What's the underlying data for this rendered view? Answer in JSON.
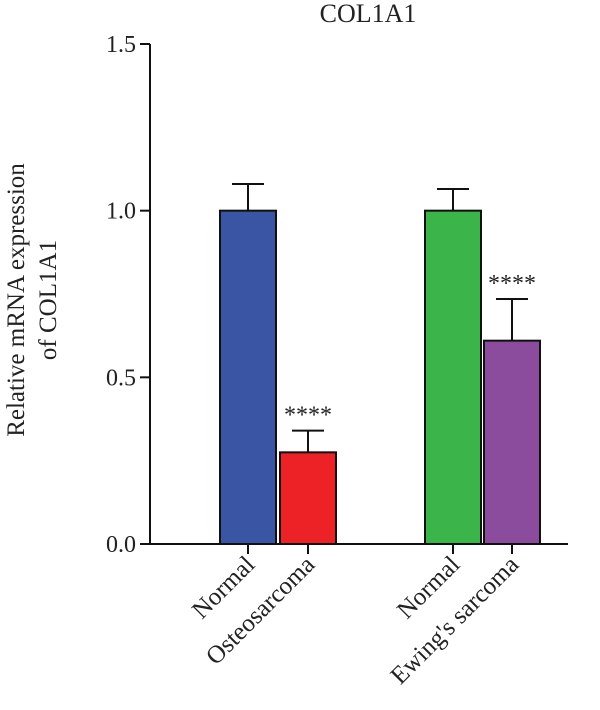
{
  "chart_data": {
    "type": "bar",
    "title": "COL1A1",
    "ylabel_line1": "Relative mRNA expression",
    "ylabel_line2": "of COL1A1",
    "ylim": [
      0,
      1.5
    ],
    "yticks": [
      "0.0",
      "0.5",
      "1.0",
      "1.5"
    ],
    "ytick_values": [
      0,
      0.5,
      1.0,
      1.5
    ],
    "grid": false,
    "categories": [
      "Normal",
      "Osteosarcoma",
      "Normal",
      "Ewing's sarcoma"
    ],
    "values": [
      1.0,
      0.275,
      1.0,
      0.61
    ],
    "errors": [
      0.08,
      0.065,
      0.065,
      0.125
    ],
    "colors": [
      "#3A55A4",
      "#EC2227",
      "#3BB54A",
      "#8B4C9E"
    ],
    "annotations": [
      "",
      "****",
      "",
      "****"
    ]
  }
}
